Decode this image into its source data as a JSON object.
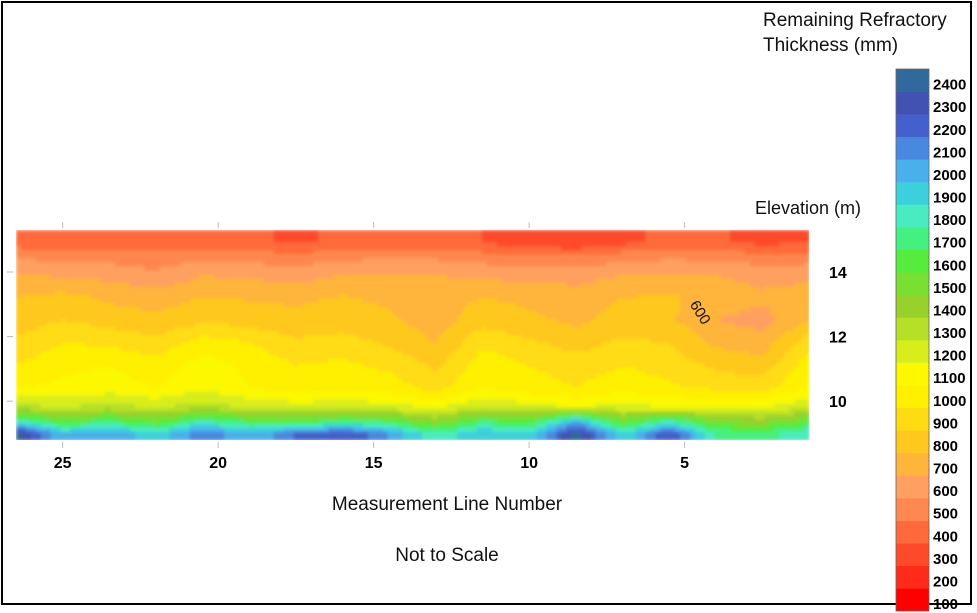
{
  "chart_data": {
    "type": "heatmap",
    "subtype": "filled-contour",
    "colorbar_title": [
      "Remaining Refractory",
      "Thickness (mm)"
    ],
    "ylabel": "Elevation (m)",
    "xlabel": "Measurement Line Number",
    "note": "Not to Scale",
    "contour_label": "600",
    "x_ticks": [
      25,
      20,
      15,
      10,
      5
    ],
    "x_direction": "reversed",
    "xlim": [
      1,
      26.5
    ],
    "y_ticks": [
      14,
      12,
      10
    ],
    "ylim": [
      8.8,
      15.3
    ],
    "levels": [
      100,
      200,
      300,
      400,
      500,
      600,
      700,
      800,
      900,
      1000,
      1100,
      1200,
      1300,
      1400,
      1500,
      1600,
      1700,
      1800,
      1900,
      2000,
      2100,
      2200,
      2300,
      2400
    ],
    "level_colors": [
      "#fe0000",
      "#ff2b1a",
      "#ff4a2a",
      "#ff6a3a",
      "#ff8750",
      "#ffa060",
      "#ffb43a",
      "#ffc81e",
      "#ffdc12",
      "#fff000",
      "#fbf800",
      "#d8ee1a",
      "#b6e028",
      "#98d02c",
      "#78e030",
      "#56ec3c",
      "#44f080",
      "#48ecc0",
      "#3cd0dc",
      "#4ab0ec",
      "#4888e0",
      "#4460cc",
      "#4252b2",
      "#2f6a9a"
    ],
    "elevation_rows": [
      14.9,
      14.5,
      13.9,
      13.2,
      12.5,
      11.8,
      11.1,
      10.4,
      9.8,
      9.4,
      9.0
    ],
    "measurement_lines": [
      26.5,
      25,
      23.5,
      22,
      20.5,
      19,
      17.5,
      16,
      14.5,
      13,
      11.5,
      10,
      8.5,
      7,
      5.5,
      4,
      2.5,
      1
    ],
    "thickness_grid_mm": [
      [
        350,
        320,
        310,
        300,
        320,
        310,
        290,
        310,
        330,
        320,
        300,
        250,
        220,
        280,
        320,
        310,
        280,
        300
      ],
      [
        480,
        460,
        450,
        440,
        470,
        450,
        430,
        460,
        480,
        470,
        440,
        420,
        400,
        450,
        470,
        460,
        430,
        440
      ],
      [
        600,
        590,
        570,
        520,
        600,
        580,
        560,
        600,
        620,
        600,
        580,
        560,
        560,
        600,
        620,
        600,
        570,
        580
      ],
      [
        700,
        740,
        680,
        660,
        700,
        690,
        680,
        710,
        680,
        660,
        700,
        680,
        650,
        700,
        720,
        650,
        620,
        640
      ],
      [
        750,
        800,
        760,
        720,
        780,
        760,
        730,
        740,
        720,
        650,
        760,
        720,
        680,
        740,
        720,
        600,
        560,
        700
      ],
      [
        820,
        900,
        880,
        840,
        950,
        900,
        820,
        850,
        780,
        700,
        880,
        820,
        760,
        820,
        800,
        680,
        650,
        860
      ],
      [
        900,
        980,
        1000,
        940,
        1050,
        980,
        900,
        920,
        880,
        780,
        960,
        900,
        850,
        900,
        860,
        780,
        740,
        960
      ],
      [
        1000,
        1020,
        1050,
        1000,
        1080,
        1000,
        960,
        980,
        950,
        860,
        1000,
        950,
        900,
        960,
        920,
        880,
        860,
        1020
      ],
      [
        1250,
        1200,
        1250,
        1200,
        1250,
        1200,
        1150,
        1180,
        1150,
        1100,
        1200,
        1150,
        1100,
        1150,
        1100,
        1100,
        1100,
        1200
      ],
      [
        1700,
        1500,
        1600,
        1450,
        1700,
        1550,
        1500,
        1600,
        1550,
        1350,
        1600,
        1500,
        1900,
        1450,
        1700,
        1400,
        1350,
        1500
      ],
      [
        2350,
        1900,
        2000,
        1800,
        2100,
        1900,
        2100,
        2200,
        2000,
        1700,
        1900,
        1800,
        2350,
        1800,
        2200,
        1700,
        1650,
        1800
      ]
    ]
  }
}
